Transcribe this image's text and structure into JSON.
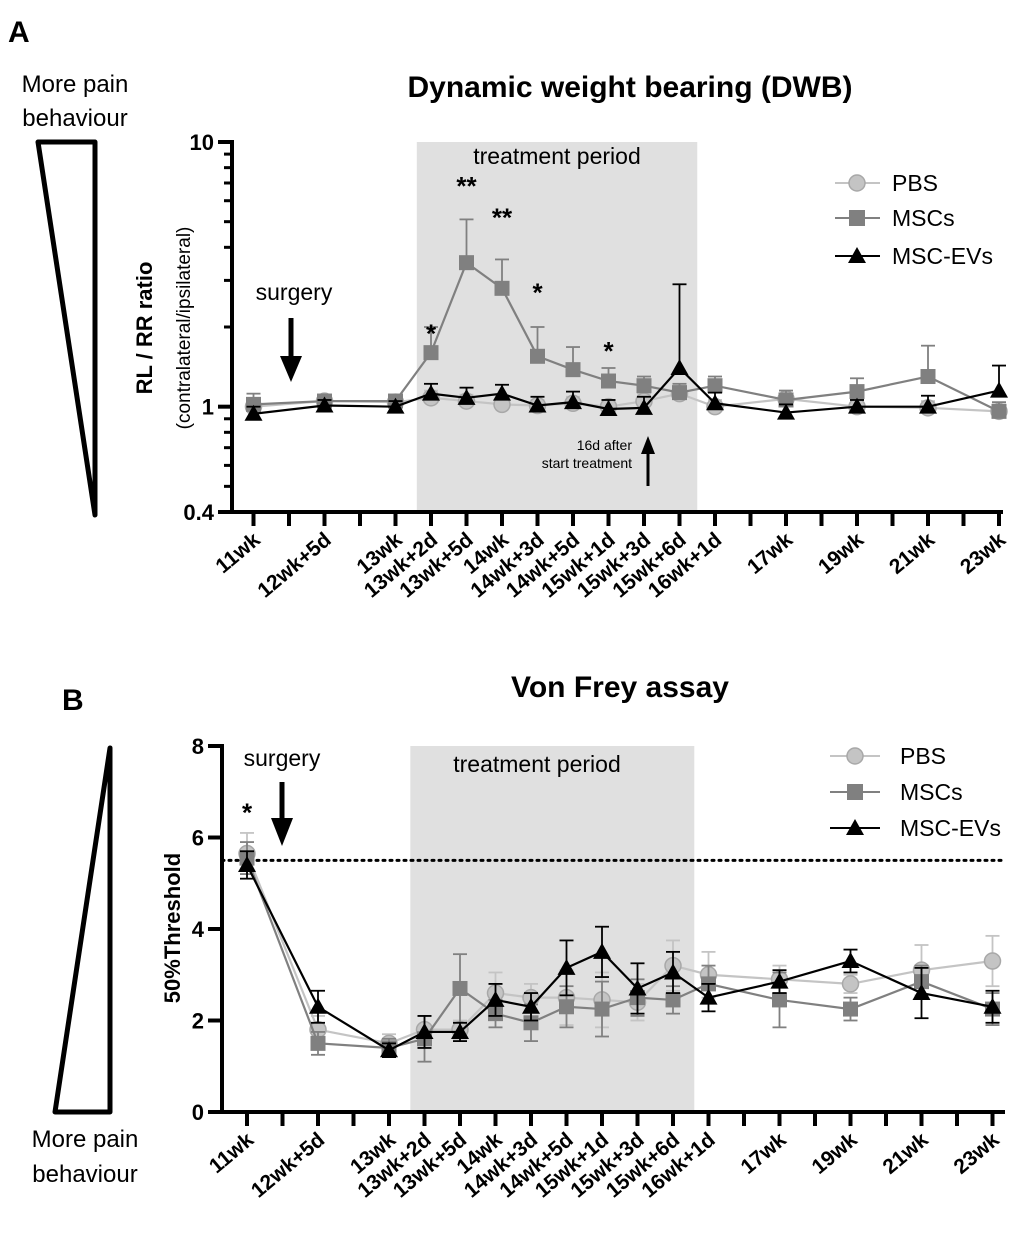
{
  "chart_data": [
    {
      "panel": "A",
      "type": "line",
      "title": "Dynamic weight bearing (DWB)",
      "ylabel": "RL / RR ratio",
      "ylabel_sub": "(contralateral/ipsilateral)",
      "yscale": "log",
      "ylim": [
        0.4,
        10
      ],
      "yticks": [
        0.4,
        1,
        10
      ],
      "categories": [
        "11wk",
        "12wk+5d",
        "13wk",
        "13wk+2d",
        "13wk+5d",
        "14wk",
        "14wk+3d",
        "14wk+5d",
        "15wk+1d",
        "15wk+3d",
        "15wk+6d",
        "16wk+1d",
        "17wk",
        "19wk",
        "21wk",
        "23wk"
      ],
      "tick_labels": [
        "11wk",
        "12wk+5d",
        "13wk",
        "13wk+2d",
        "13wk+5d",
        "14wk",
        "14wk+3d",
        "14wk+5d",
        "15wk+1d",
        "15wk+3d",
        "15wk+6d",
        "16wk+1d",
        "17wk",
        "19wk",
        "21wk",
        "23wk"
      ],
      "x": [
        0,
        2,
        4,
        5,
        6,
        7,
        8,
        9,
        10,
        11,
        12,
        13,
        15,
        17,
        19,
        21
      ],
      "legend_position": "top-right",
      "shaded_region": {
        "label": "treatment period",
        "from": 4.6,
        "to": 12.5
      },
      "annotations": {
        "surgery": "surgery",
        "treatment": "treatment period",
        "after_line1": "16d after",
        "after_line2": "start treatment"
      },
      "significance": [
        {
          "x": 5,
          "y": 1.75,
          "label": "*"
        },
        {
          "x": 6,
          "y": 6.3,
          "label": "**"
        },
        {
          "x": 7,
          "y": 4.8,
          "label": "**"
        },
        {
          "x": 8,
          "y": 2.5,
          "label": "*"
        },
        {
          "x": 10,
          "y": 1.5,
          "label": "*"
        }
      ],
      "series": [
        {
          "name": "PBS",
          "color": "#c4c4c4",
          "marker": "circle",
          "values": [
            1.0,
            1.05,
            1.04,
            1.08,
            1.05,
            1.02,
            1.01,
            1.03,
            1.0,
            1.05,
            1.12,
            1.0,
            1.07,
            1.0,
            0.99,
            0.96
          ],
          "err": [
            0.08,
            0.06,
            0.05,
            0.07,
            0.06,
            0.05,
            0.05,
            0.06,
            0.06,
            0.07,
            0.08,
            0.06,
            0.08,
            0.06,
            0.06,
            0.06
          ]
        },
        {
          "name": "MSCs",
          "color": "#808080",
          "marker": "square",
          "values": [
            1.02,
            1.05,
            1.05,
            1.6,
            3.5,
            2.8,
            1.55,
            1.38,
            1.25,
            1.2,
            1.13,
            1.2,
            1.06,
            1.14,
            1.3,
            0.96
          ],
          "err": [
            0.1,
            0.06,
            0.06,
            0.4,
            1.6,
            0.8,
            0.45,
            0.3,
            0.15,
            0.1,
            0.09,
            0.1,
            0.09,
            0.14,
            0.4,
            0.08
          ]
        },
        {
          "name": "MSC-EVs",
          "color": "#000000",
          "marker": "triangle",
          "values": [
            0.94,
            1.01,
            1.0,
            1.12,
            1.08,
            1.12,
            1.01,
            1.04,
            0.98,
            0.99,
            1.4,
            1.03,
            0.95,
            1.0,
            1.0,
            1.15
          ],
          "err": [
            0.06,
            0.05,
            0.05,
            0.1,
            0.1,
            0.09,
            0.08,
            0.1,
            0.08,
            0.1,
            1.5,
            0.1,
            0.07,
            0.06,
            0.1,
            0.28
          ]
        }
      ]
    },
    {
      "panel": "B",
      "type": "line",
      "title": "Von Frey assay",
      "ylabel": "50%Threshold",
      "yscale": "linear",
      "ylim": [
        0,
        8
      ],
      "yticks": [
        0,
        2,
        4,
        6,
        8
      ],
      "categories": [
        "11wk",
        "12wk+5d",
        "13wk",
        "13wk+2d",
        "13wk+5d",
        "14wk",
        "14wk+3d",
        "14wk+5d",
        "15wk+1d",
        "15wk+3d",
        "15wk+6d",
        "16wk+1d",
        "17wk",
        "19wk",
        "21wk",
        "23wk"
      ],
      "tick_labels": [
        "11wk",
        "12wk+5d",
        "13wk",
        "13wk+2d",
        "13wk+5d",
        "14wk",
        "14wk+3d",
        "14wk+5d",
        "15wk+1d",
        "15wk+3d",
        "15wk+6d",
        "16wk+1d",
        "17wk",
        "19wk",
        "21wk",
        "23wk"
      ],
      "x": [
        0,
        2,
        4,
        5,
        6,
        7,
        8,
        9,
        10,
        11,
        12,
        13,
        15,
        17,
        19,
        21
      ],
      "legend_position": "top-right",
      "reference_line": {
        "y": 5.5,
        "style": "dotted"
      },
      "shaded_region": {
        "label": "treatment period",
        "from": 4.6,
        "to": 12.6
      },
      "annotations": {
        "surgery": "surgery",
        "treatment": "treatment period"
      },
      "significance": [
        {
          "x": 0,
          "y": 6.35,
          "label": "*"
        }
      ],
      "series": [
        {
          "name": "PBS",
          "color": "#c4c4c4",
          "marker": "circle",
          "values": [
            5.65,
            1.8,
            1.5,
            1.8,
            1.8,
            2.6,
            2.5,
            2.5,
            2.45,
            2.4,
            3.2,
            3.0,
            2.9,
            2.8,
            3.1,
            3.3
          ],
          "err": [
            0.45,
            0.3,
            0.2,
            0.3,
            0.2,
            0.45,
            0.3,
            0.6,
            0.6,
            0.4,
            0.55,
            0.5,
            0.3,
            0.2,
            0.55,
            0.55
          ]
        },
        {
          "name": "MSCs",
          "color": "#808080",
          "marker": "square",
          "values": [
            5.55,
            1.5,
            1.4,
            1.6,
            2.7,
            2.15,
            1.95,
            2.3,
            2.25,
            2.5,
            2.45,
            2.8,
            2.45,
            2.25,
            2.85,
            2.25
          ],
          "err": [
            0.35,
            0.25,
            0.2,
            0.5,
            0.75,
            0.3,
            0.4,
            0.45,
            0.6,
            0.4,
            0.3,
            0.4,
            0.6,
            0.25,
            0.35,
            0.35
          ]
        },
        {
          "name": "MSC-EVs",
          "color": "#000000",
          "marker": "triangle",
          "values": [
            5.4,
            2.3,
            1.35,
            1.75,
            1.75,
            2.45,
            2.3,
            3.15,
            3.5,
            2.7,
            3.05,
            2.5,
            2.85,
            3.3,
            2.6,
            2.3
          ],
          "err": [
            0.3,
            0.35,
            0.15,
            0.35,
            0.2,
            0.35,
            0.3,
            0.6,
            0.55,
            0.55,
            0.45,
            0.3,
            0.25,
            0.25,
            0.55,
            0.35
          ]
        }
      ]
    }
  ],
  "pain_labels": {
    "top": [
      "More pain",
      "behaviour"
    ],
    "bottom": [
      "More pain",
      "behaviour"
    ]
  }
}
